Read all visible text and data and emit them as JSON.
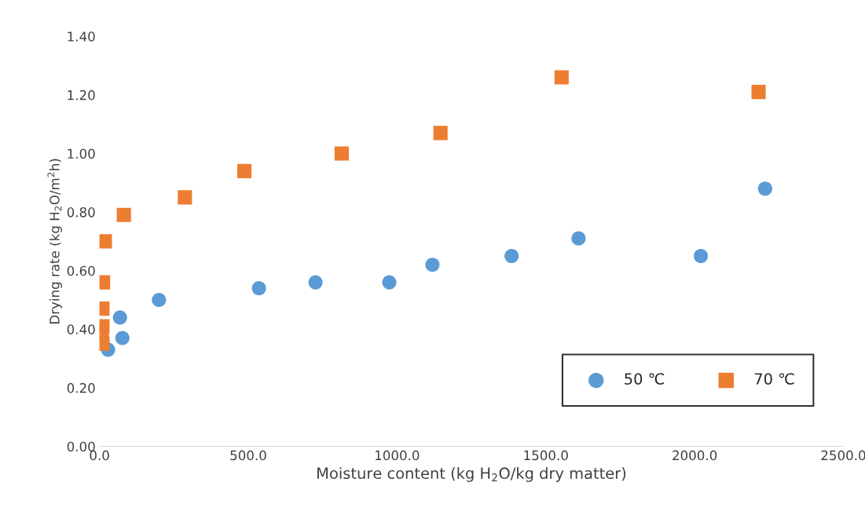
{
  "chart_data": {
    "type": "scatter",
    "xlabel": "Moisture content (kg H$_{2}$O/kg dry matter)",
    "ylabel": "Drying rate (kg H$_{2}$O/m$^{2}$h)",
    "series": [
      {
        "name": "50 ℃",
        "color": "#5b9bd5",
        "marker": "circle",
        "x": [
          29,
          69,
          77,
          200,
          536,
          726,
          974,
          1119,
          1385,
          1610,
          2021,
          2237
        ],
        "values": [
          0.33,
          0.44,
          0.37,
          0.5,
          0.54,
          0.56,
          0.56,
          0.62,
          0.65,
          0.71,
          0.65,
          0.88
        ]
      },
      {
        "name": "70 ℃",
        "color": "#ed7d31",
        "marker": "square",
        "x": [
          10,
          8,
          10,
          10,
          12,
          18,
          82,
          287,
          487,
          814,
          1146,
          1553,
          2215
        ],
        "values": [
          0.35,
          0.39,
          0.41,
          0.47,
          0.56,
          0.7,
          0.79,
          0.85,
          0.94,
          1.0,
          1.07,
          1.26,
          1.21
        ]
      }
    ],
    "xlim": [
      0,
      2500
    ],
    "xticks": [
      {
        "value": 0,
        "label": "0.0"
      },
      {
        "value": 500,
        "label": "500.0"
      },
      {
        "value": 1000,
        "label": "1000.0"
      },
      {
        "value": 1500,
        "label": "1500.0"
      },
      {
        "value": 2000,
        "label": "2000.0"
      },
      {
        "value": 2500,
        "label": "2500.0"
      }
    ],
    "ylim": [
      0,
      1.4
    ],
    "yticks": [
      {
        "value": 0,
        "label": "0.00"
      },
      {
        "value": 0.2,
        "label": "0.20"
      },
      {
        "value": 0.4,
        "label": "0.40"
      },
      {
        "value": 0.6,
        "label": "0.60"
      },
      {
        "value": 0.8,
        "label": "0.80"
      },
      {
        "value": 1.0,
        "label": "1.00"
      },
      {
        "value": 1.2,
        "label": "1.20"
      },
      {
        "value": 1.4,
        "label": "1.40"
      }
    ],
    "legend": "bottom right",
    "grid": false
  }
}
